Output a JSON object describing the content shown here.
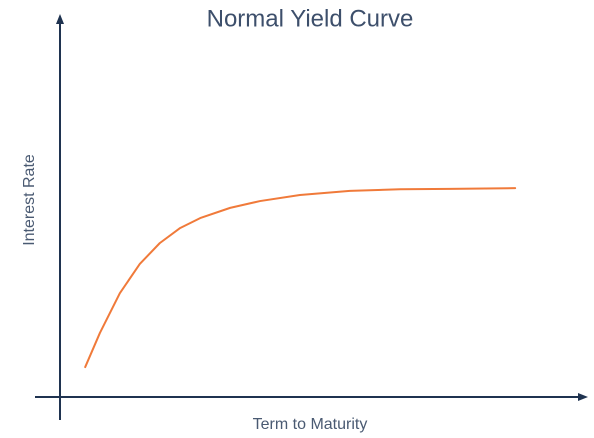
{
  "chart_data": {
    "type": "line",
    "title": "Normal Yield Curve",
    "x_label": "Term to Maturity",
    "y_label": "Interest Rate",
    "x": [
      4.8,
      7.6,
      11.4,
      15.2,
      19.0,
      22.9,
      26.7,
      32.4,
      38.1,
      45.7,
      55.2,
      64.8,
      74.3,
      86.7
    ],
    "series": [
      {
        "color": "#f07a3a",
        "values": [
          7.9,
          16.9,
          27.4,
          35.1,
          40.6,
          44.6,
          47.2,
          49.9,
          51.7,
          53.3,
          54.4,
          54.8,
          54.9,
          55.1
        ]
      }
    ],
    "xlim": [
      0,
      100
    ],
    "ylim": [
      0,
      100
    ]
  }
}
